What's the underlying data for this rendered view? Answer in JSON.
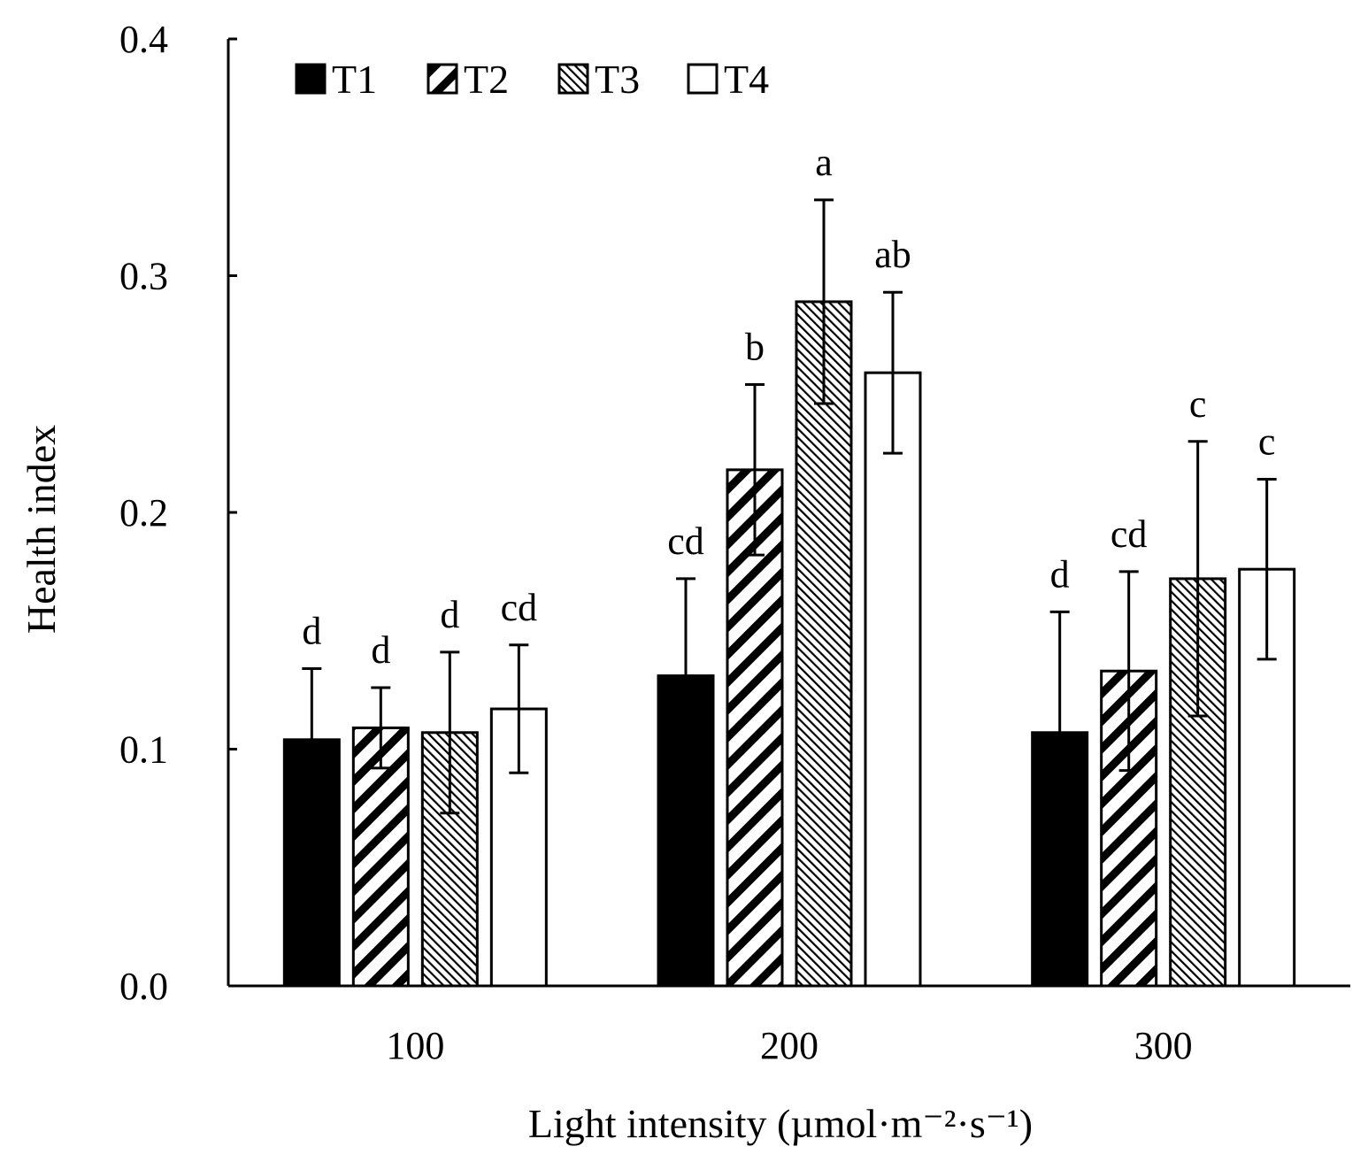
{
  "chart_data": {
    "type": "bar",
    "xlabel": "Light intensity (µmol·m⁻²·s⁻¹)",
    "ylabel": "Health index",
    "ylim": [
      0.0,
      0.4
    ],
    "yticks": [
      "0.0",
      "0.1",
      "0.2",
      "0.3",
      "0.4"
    ],
    "categories": [
      "100",
      "200",
      "300"
    ],
    "legend_position": "top-left",
    "grid": false,
    "series": [
      {
        "name": "T1",
        "pattern": "solid-black",
        "values": [
          0.104,
          0.131,
          0.107
        ],
        "errors": [
          0.03,
          0.041,
          0.051
        ],
        "labels": [
          "d",
          "cd",
          "d"
        ]
      },
      {
        "name": "T2",
        "pattern": "wide-diagonal",
        "values": [
          0.109,
          0.218,
          0.133
        ],
        "errors": [
          0.017,
          0.036,
          0.042
        ],
        "labels": [
          "d",
          "b",
          "cd"
        ]
      },
      {
        "name": "T3",
        "pattern": "fine-diagonal",
        "values": [
          0.107,
          0.289,
          0.172
        ],
        "errors": [
          0.034,
          0.043,
          0.058
        ],
        "labels": [
          "d",
          "a",
          "c"
        ]
      },
      {
        "name": "T4",
        "pattern": "white",
        "values": [
          0.117,
          0.259,
          0.176
        ],
        "errors": [
          0.027,
          0.034,
          0.038
        ],
        "labels": [
          "cd",
          "ab",
          "c"
        ]
      }
    ]
  }
}
